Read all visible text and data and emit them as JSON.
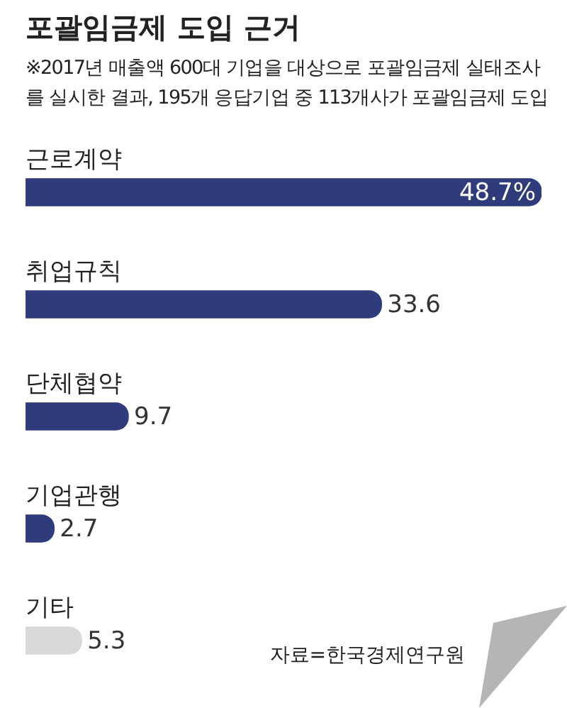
{
  "chart_data": {
    "type": "bar",
    "orientation": "horizontal",
    "title": "포괄임금제 도입 근거",
    "subtitle": "※2017년 매출액 600대 기업을 대상으로 포괄임금제 실태조사를 실시한 결과, 195개 응답기업 중 113개사가 포괄임금제 도입",
    "categories": [
      "근로계약",
      "취업규칙",
      "단체협약",
      "기업관행",
      "기타"
    ],
    "values": [
      48.7,
      33.6,
      9.7,
      2.7,
      5.3
    ],
    "value_labels": [
      "48.7%",
      "33.6",
      "9.7",
      "2.7",
      "5.3"
    ],
    "colors": [
      "#2f3b7a",
      "#2f3b7a",
      "#2f3b7a",
      "#2f3b7a",
      "#d9d9d9"
    ],
    "annotations": [
      "자료=한국경제연구원"
    ]
  }
}
